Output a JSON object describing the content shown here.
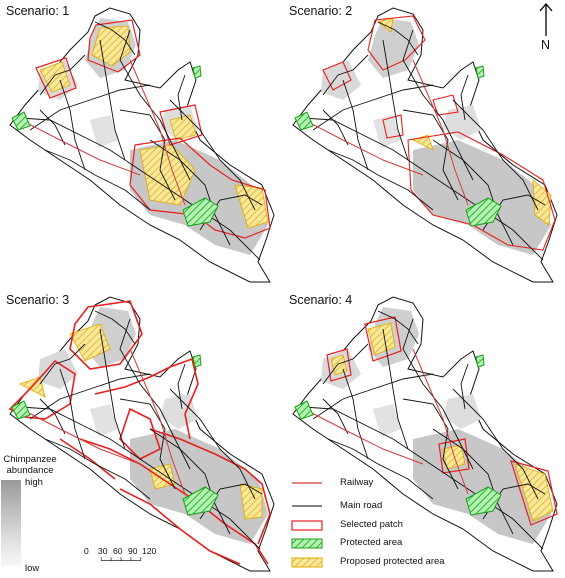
{
  "panels": [
    {
      "title": "Scenario: 1"
    },
    {
      "title": "Scenario: 2"
    },
    {
      "title": "Scenario: 3"
    },
    {
      "title": "Scenario: 4"
    }
  ],
  "north_arrow": {
    "label": "N"
  },
  "abundance_legend": {
    "title_line1": "Chimpanzee",
    "title_line2": "abundance",
    "high": "high",
    "low": "low"
  },
  "scale_bar": {
    "ticks": [
      "0",
      "30",
      "60",
      "90",
      "120"
    ]
  },
  "legend": {
    "railway": "Railway",
    "main_road": "Main road",
    "selected_patch": "Selected patch",
    "protected_area": "Protected area",
    "proposed_protected_area": "Proposed protected area"
  },
  "colors": {
    "railway": "#d23a3a",
    "road": "#000000",
    "selected_patch": "#e8201e",
    "protected_area": "#33cc33",
    "proposed_protected_area": "#f2c200",
    "abundance_high": "#9a9a9a",
    "abundance_low": "#f7f7f7"
  }
}
